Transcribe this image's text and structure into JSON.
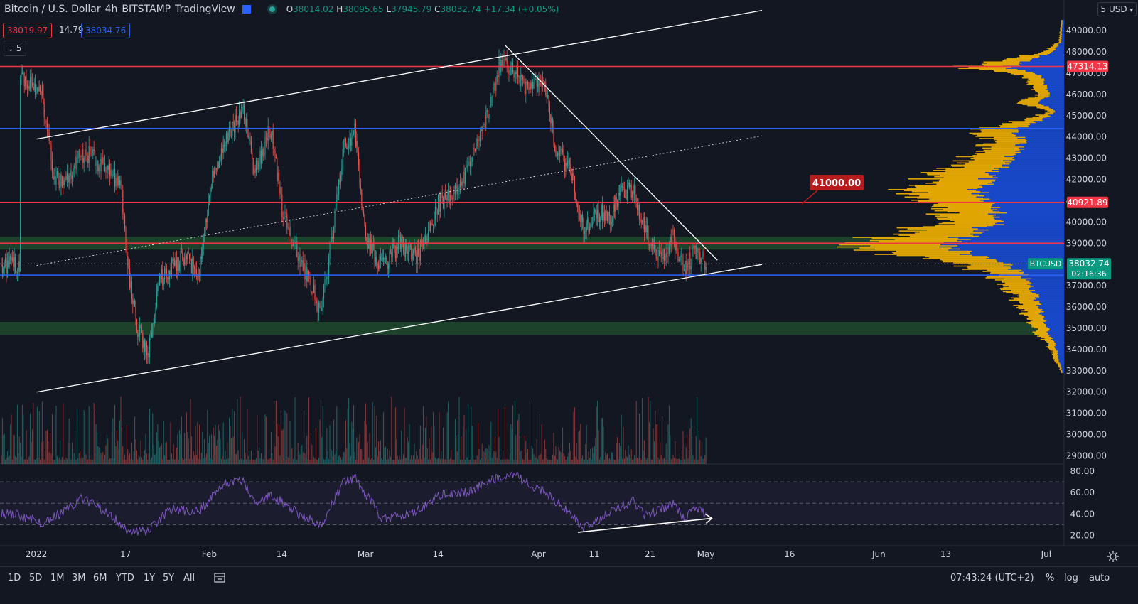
{
  "header": {
    "symbol": "Bitcoin / U.S. Dollar",
    "interval": "4h",
    "exchange": "BITSTAMP",
    "platform": "TradingView",
    "open_label": "O",
    "open": "38014.02",
    "high_label": "H",
    "high": "38095.65",
    "low_label": "L",
    "low": "37945.79",
    "close_label": "C",
    "close": "38032.74",
    "change": "+17.34 (+0.05%)"
  },
  "trade": {
    "sell": "38019.97",
    "spread": "14.79",
    "buy": "38034.76",
    "collapse_label": "5"
  },
  "axis": {
    "currency": "USD",
    "top_label": "5",
    "price_ticks": [
      "49000.00",
      "48000.00",
      "47000.00",
      "46000.00",
      "45000.00",
      "44000.00",
      "43000.00",
      "42000.00",
      "41000.00",
      "40000.00",
      "39000.00",
      "37000.00",
      "36000.00",
      "35000.00",
      "34000.00",
      "33000.00",
      "32000.00",
      "31000.00",
      "30000.00",
      "29000.00"
    ],
    "rsi_ticks": [
      "80.00",
      "60.00",
      "40.00",
      "20.00"
    ],
    "time_labels": [
      "2022",
      "17",
      "Feb",
      "14",
      "Mar",
      "14",
      "Apr",
      "11",
      "21",
      "May",
      "16",
      "Jun",
      "13",
      "Jul"
    ]
  },
  "markers": {
    "level_47314": "47314.13",
    "level_40921": "40921.89",
    "current_symbol": "BTCUSD",
    "current_price": "38032.74",
    "countdown": "02:16:36",
    "note_41000": "41000.00"
  },
  "bottom_bar": {
    "timeframes": [
      "1D",
      "5D",
      "1M",
      "3M",
      "6M",
      "YTD",
      "1Y",
      "5Y",
      "All"
    ],
    "clock": "07:43:24 (UTC+2)",
    "percent": "%",
    "log": "log",
    "auto": "auto"
  },
  "colors": {
    "background": "#131722",
    "up": "#26a69a",
    "down": "#ef5350",
    "red_line": "#f23645",
    "blue_line": "#2962ff",
    "zone": "#1e4a2e",
    "rsi": "#7e57c2",
    "vp_yellow": "#f7b500",
    "vp_blue": "#1848c8"
  },
  "chart_data": {
    "type": "candlestick",
    "symbol": "BTCUSD",
    "interval": "4h",
    "x_range": [
      "2022-01-01",
      "2022-05-04"
    ],
    "ylim": [
      28600,
      50300
    ],
    "close_path": [
      [
        "2022-01-01",
        47000
      ],
      [
        "2022-01-05",
        46000
      ],
      [
        "2022-01-07",
        42200
      ],
      [
        "2022-01-09",
        41800
      ],
      [
        "2022-01-12",
        43200
      ],
      [
        "2022-01-14",
        43100
      ],
      [
        "2022-01-17",
        42300
      ],
      [
        "2022-01-19",
        41900
      ],
      [
        "2022-01-21",
        36500
      ],
      [
        "2022-01-22",
        35100
      ],
      [
        "2022-01-24",
        33800
      ],
      [
        "2022-01-26",
        37200
      ],
      [
        "2022-01-28",
        37800
      ],
      [
        "2022-01-31",
        38500
      ],
      [
        "2022-02-02",
        37300
      ],
      [
        "2022-02-04",
        41600
      ],
      [
        "2022-02-07",
        43900
      ],
      [
        "2022-02-10",
        45300
      ],
      [
        "2022-02-12",
        42300
      ],
      [
        "2022-02-15",
        44400
      ],
      [
        "2022-02-17",
        40500
      ],
      [
        "2022-02-20",
        38300
      ],
      [
        "2022-02-22",
        37200
      ],
      [
        "2022-02-24",
        35700
      ],
      [
        "2022-02-26",
        39300
      ],
      [
        "2022-02-28",
        43500
      ],
      [
        "2022-03-02",
        44300
      ],
      [
        "2022-03-04",
        39200
      ],
      [
        "2022-03-07",
        37900
      ],
      [
        "2022-03-10",
        39000
      ],
      [
        "2022-03-13",
        38300
      ],
      [
        "2022-03-15",
        39300
      ],
      [
        "2022-03-17",
        40900
      ],
      [
        "2022-03-20",
        41300
      ],
      [
        "2022-03-22",
        42400
      ],
      [
        "2022-03-25",
        44300
      ],
      [
        "2022-03-28",
        47400
      ],
      [
        "2022-03-30",
        47300
      ],
      [
        "2022-04-02",
        46200
      ],
      [
        "2022-04-05",
        46700
      ],
      [
        "2022-04-07",
        43500
      ],
      [
        "2022-04-10",
        42200
      ],
      [
        "2022-04-12",
        39600
      ],
      [
        "2022-04-14",
        40400
      ],
      [
        "2022-04-17",
        40300
      ],
      [
        "2022-04-19",
        41500
      ],
      [
        "2022-04-21",
        41600
      ],
      [
        "2022-04-23",
        39600
      ],
      [
        "2022-04-26",
        38200
      ],
      [
        "2022-04-28",
        39400
      ],
      [
        "2022-04-30",
        37700
      ],
      [
        "2022-05-02",
        38600
      ],
      [
        "2022-05-04",
        38032.74
      ]
    ],
    "horizontal_levels": [
      {
        "price": 47314.13,
        "color": "red"
      },
      {
        "price": 44400,
        "color": "blue"
      },
      {
        "price": 40921.89,
        "color": "red"
      },
      {
        "price": 39000,
        "color": "red"
      },
      {
        "price": 37500,
        "color": "blue"
      }
    ],
    "zones": [
      [
        38700,
        39300
      ],
      [
        34700,
        35300
      ]
    ],
    "annotations": [
      "41000.00"
    ],
    "rsi": {
      "period": 14,
      "ylim": [
        13,
        87
      ],
      "bands": [
        70,
        50,
        30
      ],
      "path": [
        [
          "2022-01-01",
          38
        ],
        [
          "2022-01-05",
          32
        ],
        [
          "2022-01-09",
          42
        ],
        [
          "2022-01-12",
          55
        ],
        [
          "2022-01-17",
          40
        ],
        [
          "2022-01-21",
          22
        ],
        [
          "2022-01-24",
          25
        ],
        [
          "2022-01-28",
          45
        ],
        [
          "2022-02-02",
          42
        ],
        [
          "2022-02-07",
          70
        ],
        [
          "2022-02-10",
          72
        ],
        [
          "2022-02-12",
          50
        ],
        [
          "2022-02-15",
          58
        ],
        [
          "2022-02-20",
          40
        ],
        [
          "2022-02-24",
          30
        ],
        [
          "2022-02-28",
          70
        ],
        [
          "2022-03-02",
          74
        ],
        [
          "2022-03-07",
          35
        ],
        [
          "2022-03-13",
          42
        ],
        [
          "2022-03-17",
          58
        ],
        [
          "2022-03-22",
          60
        ],
        [
          "2022-03-28",
          75
        ],
        [
          "2022-03-30",
          78
        ],
        [
          "2022-04-05",
          60
        ],
        [
          "2022-04-10",
          40
        ],
        [
          "2022-04-12",
          27
        ],
        [
          "2022-04-17",
          42
        ],
        [
          "2022-04-21",
          52
        ],
        [
          "2022-04-23",
          38
        ],
        [
          "2022-04-28",
          50
        ],
        [
          "2022-04-30",
          36
        ],
        [
          "2022-05-02",
          45
        ],
        [
          "2022-05-04",
          40
        ]
      ]
    },
    "volume_profile": true
  }
}
